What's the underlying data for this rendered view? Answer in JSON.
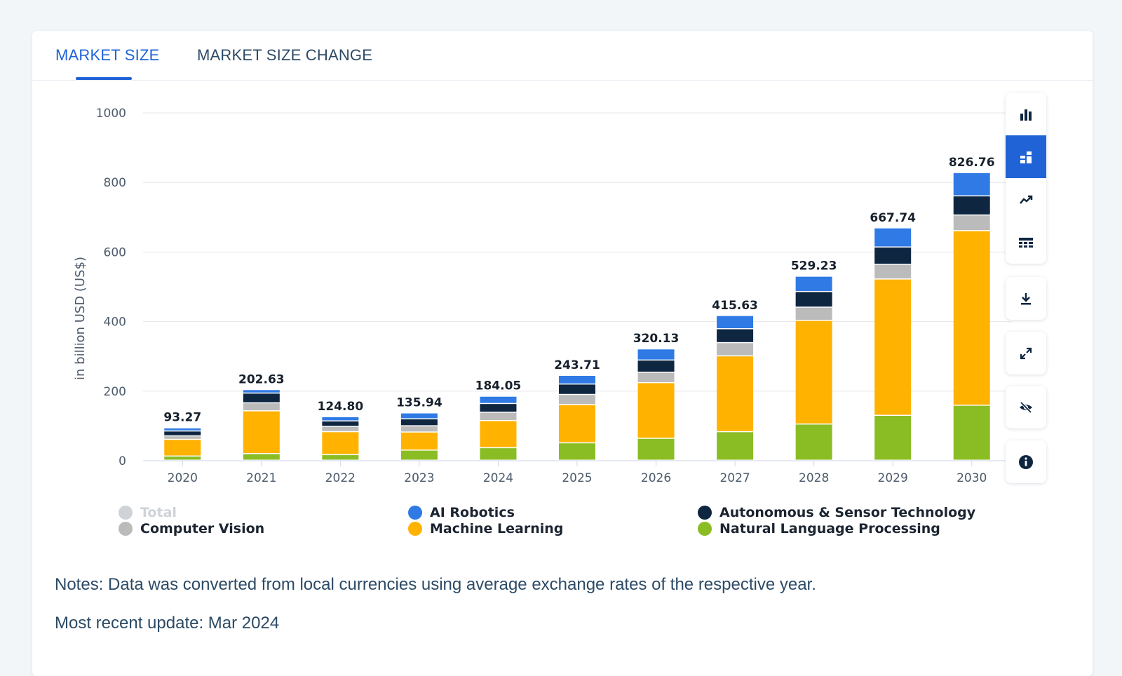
{
  "tabs": [
    {
      "label": "MARKET SIZE",
      "active": true
    },
    {
      "label": "MARKET SIZE CHANGE",
      "active": false
    }
  ],
  "chart_data": {
    "type": "stacked-bar",
    "ylabel": "in billion USD (US$)",
    "ylim": [
      0,
      1000
    ],
    "yticks": [
      0,
      200,
      400,
      600,
      800,
      1000
    ],
    "categories": [
      "2020",
      "2021",
      "2022",
      "2023",
      "2024",
      "2025",
      "2026",
      "2027",
      "2028",
      "2029",
      "2030"
    ],
    "totals": [
      93.27,
      202.63,
      124.8,
      135.94,
      184.05,
      243.71,
      320.13,
      415.63,
      529.23,
      667.74,
      826.76
    ],
    "total_labels": [
      "93.27",
      "202.63",
      "124.80",
      "135.94",
      "184.05",
      "243.71",
      "320.13",
      "415.63",
      "529.23",
      "667.74",
      "826.76"
    ],
    "series": [
      {
        "name": "Natural Language Processing",
        "color": "#8abd24",
        "values": [
          12,
          19,
          16,
          29,
          36,
          50,
          63,
          82,
          104,
          129,
          158
        ]
      },
      {
        "name": "Machine Learning",
        "color": "#ffb200",
        "values": [
          48,
          123,
          66,
          52,
          78,
          110,
          160,
          218,
          298,
          392,
          502
        ]
      },
      {
        "name": "Computer Vision",
        "color": "#bbbbbb",
        "values": [
          10,
          23,
          15,
          18,
          24,
          29,
          30,
          38,
          38,
          42,
          45
        ]
      },
      {
        "name": "Autonomous & Sensor Technology",
        "color": "#0f2641",
        "values": [
          14,
          28,
          16,
          20,
          25,
          30,
          35,
          40,
          45,
          50,
          55
        ]
      },
      {
        "name": "AI Robotics",
        "color": "#2f7ae5",
        "values": [
          9,
          10,
          12,
          17,
          21,
          25,
          32,
          38,
          44,
          55,
          67
        ]
      }
    ]
  },
  "legend": {
    "total": {
      "label": "Total",
      "color": "#cfd2d6"
    },
    "ai_robotics": {
      "label": "AI Robotics",
      "color": "#2f7ae5"
    },
    "autonomous": {
      "label": "Autonomous & Sensor Technology",
      "color": "#0f2641"
    },
    "computer_vision": {
      "label": "Computer Vision",
      "color": "#bbbbbb"
    },
    "machine_learning": {
      "label": "Machine Learning",
      "color": "#ffb200"
    },
    "nlp": {
      "label": "Natural Language Processing",
      "color": "#8abd24"
    }
  },
  "notes": {
    "text": "Notes: Data was converted from local currencies using average exchange rates of the respective year.",
    "update": "Most recent update: Mar 2024"
  },
  "toolbar": {
    "view_icons": [
      "bar-chart-icon",
      "stacked-chart-icon",
      "trend-line-icon",
      "table-view-icon"
    ],
    "active_view": "stacked-chart-icon",
    "actions": [
      "download-icon",
      "fullscreen-icon",
      "hide-icon",
      "info-icon"
    ]
  }
}
